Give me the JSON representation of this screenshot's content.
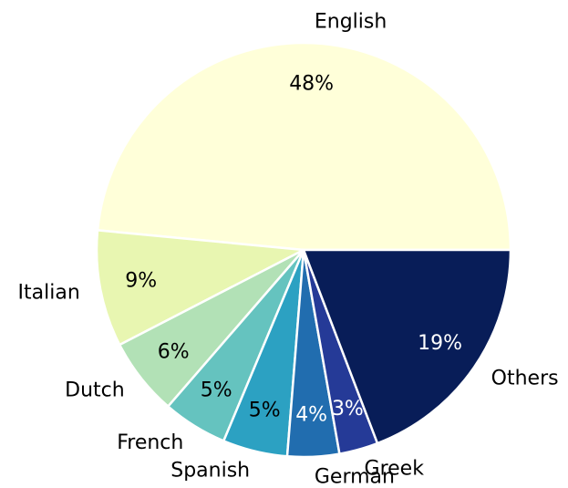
{
  "chart_data": {
    "type": "pie",
    "categories": [
      "English",
      "Italian",
      "Dutch",
      "French",
      "Spanish",
      "German",
      "Greek",
      "Others"
    ],
    "values": [
      48,
      9,
      6,
      5,
      5,
      4,
      3,
      19
    ],
    "value_labels": [
      "48%",
      "9%",
      "6%",
      "5%",
      "5%",
      "4%",
      "3%",
      "19%"
    ],
    "colors": [
      "#ffffd9",
      "#e8f6b1",
      "#b2e1b6",
      "#65c3bf",
      "#2ca1c2",
      "#216daf",
      "#253a97",
      "#081d58"
    ]
  }
}
